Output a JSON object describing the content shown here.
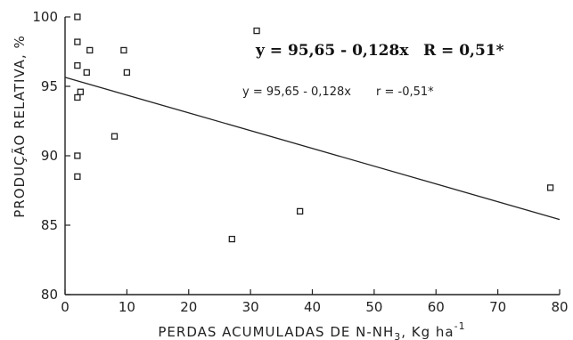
{
  "chart_data": {
    "type": "scatter",
    "xlabel": "PERDAS ACUMULADAS DE N-NH",
    "xlabel_sub": "3",
    "xlabel_unit": ", Kg ha",
    "xlabel_sup": "-1",
    "ylabel": "PRODUÇÃO RELATIVA, %",
    "xlim": [
      0,
      80
    ],
    "ylim": [
      80,
      100
    ],
    "x_ticks": [
      "0",
      "10",
      "20",
      "30",
      "40",
      "50",
      "60",
      "70",
      "80"
    ],
    "y_ticks": [
      "80",
      "85",
      "90",
      "95",
      "100"
    ],
    "grid": false,
    "points": [
      {
        "x": 2,
        "y": 100
      },
      {
        "x": 2,
        "y": 98.2
      },
      {
        "x": 4,
        "y": 97.6
      },
      {
        "x": 9.5,
        "y": 97.6
      },
      {
        "x": 2,
        "y": 96.5
      },
      {
        "x": 3.5,
        "y": 96
      },
      {
        "x": 10,
        "y": 96
      },
      {
        "x": 2.5,
        "y": 94.6
      },
      {
        "x": 2,
        "y": 94.2
      },
      {
        "x": 8,
        "y": 91.4
      },
      {
        "x": 2,
        "y": 90
      },
      {
        "x": 2,
        "y": 88.5
      },
      {
        "x": 31,
        "y": 99
      },
      {
        "x": 38,
        "y": 86
      },
      {
        "x": 27,
        "y": 84
      },
      {
        "x": 78.5,
        "y": 87.7
      }
    ],
    "regression": {
      "intercept": 95.65,
      "slope": -0.128,
      "x_range": [
        0,
        80
      ]
    },
    "annotations": [
      {
        "text": "y = 95,65 - 0,128x",
        "style": "bold"
      },
      {
        "text": "R = 0,51*",
        "style": "bold"
      },
      {
        "text": "y = 95,65 - 0,128x",
        "style": "hand"
      },
      {
        "text": "r = -0,51*",
        "style": "hand"
      }
    ]
  }
}
